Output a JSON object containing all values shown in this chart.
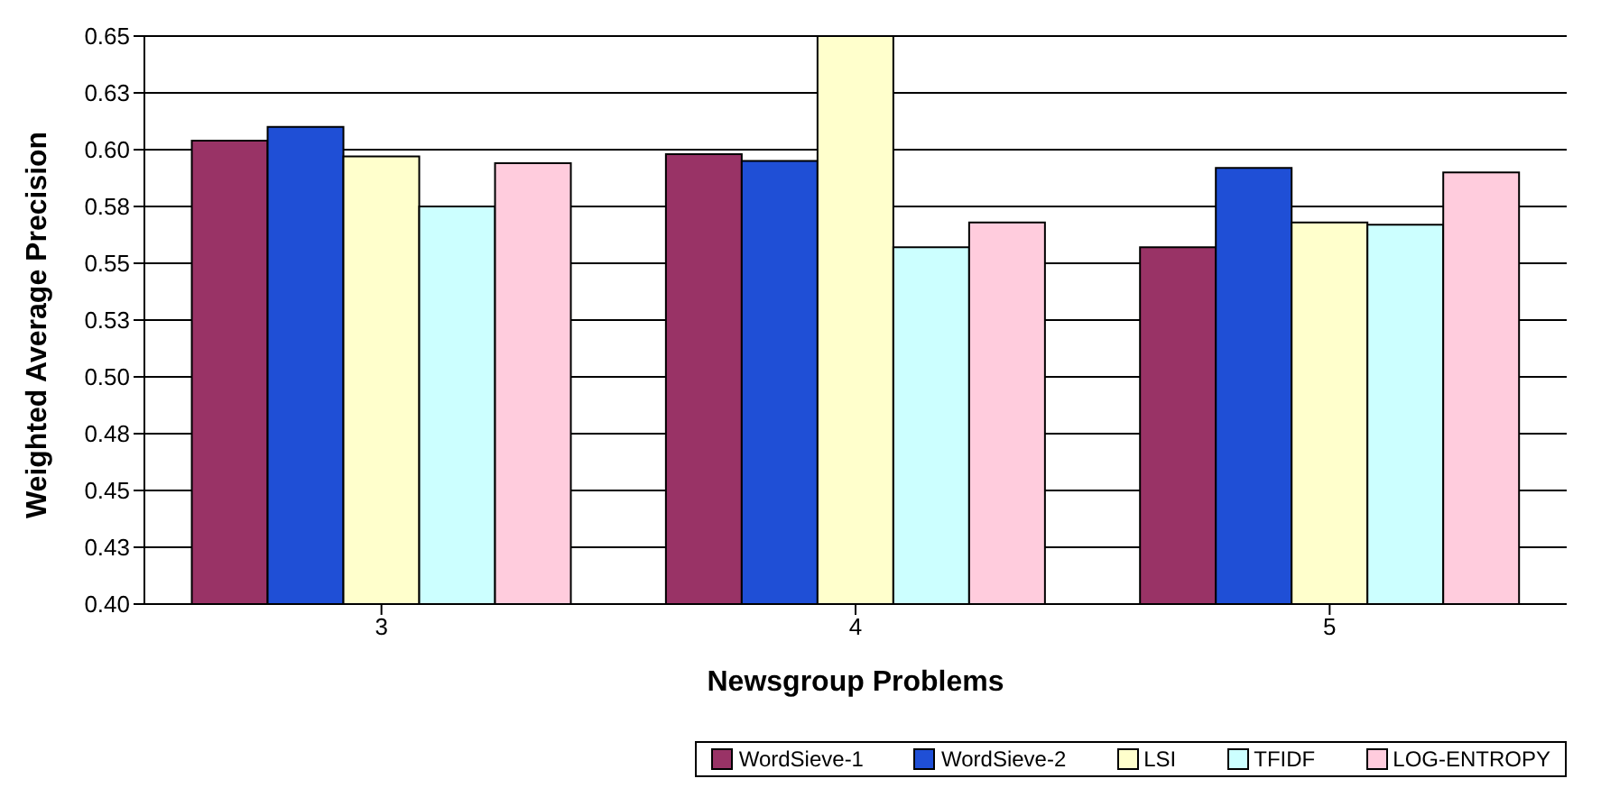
{
  "chart_data": {
    "type": "bar",
    "xlabel": "Newsgroup Problems",
    "ylabel": "Weighted Average Precision",
    "categories": [
      "3",
      "4",
      "5"
    ],
    "series": [
      {
        "name": "WordSieve-1",
        "color": "#993366",
        "values": [
          0.604,
          0.598,
          0.557
        ]
      },
      {
        "name": "WordSieve-2",
        "color": "#1f4fd6",
        "values": [
          0.61,
          0.595,
          0.592
        ]
      },
      {
        "name": "LSI",
        "color": "#ffffcc",
        "values": [
          0.597,
          0.65,
          0.568
        ]
      },
      {
        "name": "TFIDF",
        "color": "#ccffff",
        "values": [
          0.575,
          0.557,
          0.567
        ]
      },
      {
        "name": "LOG-ENTROPY",
        "color": "#ffccdd",
        "values": [
          0.594,
          0.568,
          0.59
        ]
      }
    ],
    "ylim": [
      0.4,
      0.65
    ],
    "yticks": [
      {
        "value": 0.4,
        "label": "0.40"
      },
      {
        "value": 0.425,
        "label": "0.43"
      },
      {
        "value": 0.45,
        "label": "0.45"
      },
      {
        "value": 0.475,
        "label": "0.48"
      },
      {
        "value": 0.5,
        "label": "0.50"
      },
      {
        "value": 0.525,
        "label": "0.53"
      },
      {
        "value": 0.55,
        "label": "0.55"
      },
      {
        "value": 0.575,
        "label": "0.58"
      },
      {
        "value": 0.6,
        "label": "0.60"
      },
      {
        "value": 0.625,
        "label": "0.63"
      },
      {
        "value": 0.65,
        "label": "0.65"
      }
    ],
    "grid": "y",
    "legend": "bottom right"
  }
}
